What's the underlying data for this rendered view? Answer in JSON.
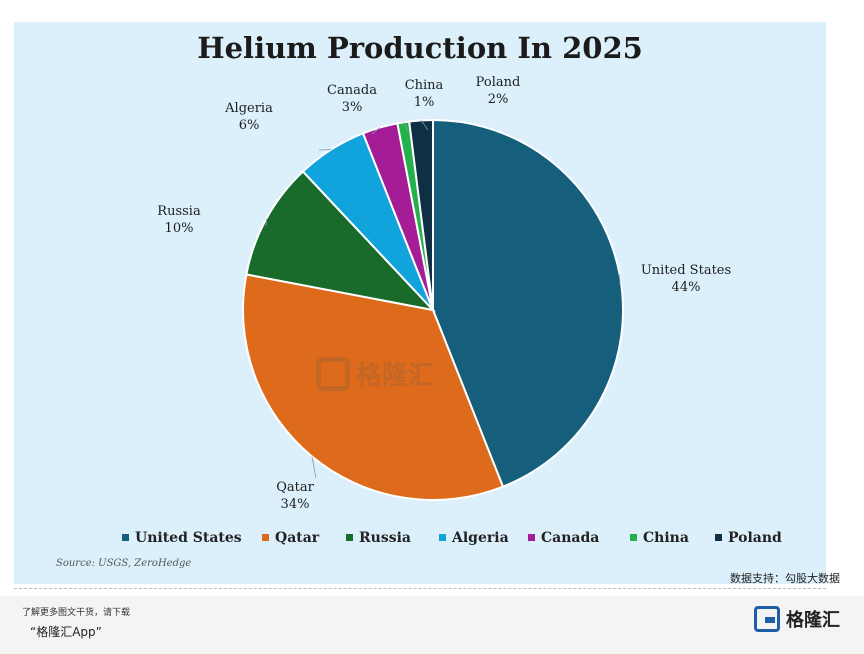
{
  "chart_data": {
    "type": "pie",
    "title": "Helium Production In 2025",
    "categories": [
      "United States",
      "Qatar",
      "Russia",
      "Algeria",
      "Canada",
      "China",
      "Poland"
    ],
    "values": [
      44,
      34,
      10,
      6,
      3,
      1,
      2
    ],
    "value_labels": [
      "44%",
      "34%",
      "10%",
      "6%",
      "3%",
      "1%",
      "2%"
    ],
    "colors": [
      "#155f7d",
      "#de6b1b",
      "#186b2b",
      "#10a3dc",
      "#a41c96",
      "#25b04b",
      "#0e2f44"
    ],
    "legend": "bottom"
  },
  "source": "Source: USGS, ZeroHedge",
  "support": "数据支持：勾股大数据",
  "watermark": "格隆汇",
  "footer": {
    "promo_line1": "了解更多图文干货，请下载",
    "promo_line2": "“格隆汇App”",
    "logo_text": "格隆汇"
  }
}
